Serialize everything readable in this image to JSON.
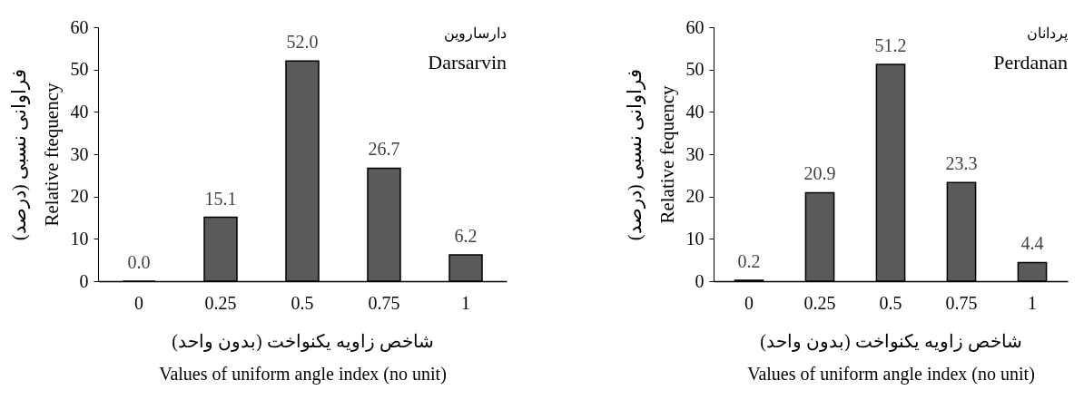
{
  "chart_data": [
    {
      "type": "bar",
      "title": "دارساروین",
      "subtitle": "Darsarvin",
      "xlabel": "شاخص زاویه یکنواخت (بدون واحد)\nValues of uniform angle index (no unit)",
      "ylabel": "فراوانی نسبی (درصد)\nRelative ftequency",
      "categories": [
        "0",
        "0.25",
        "0.5",
        "0.75",
        "1"
      ],
      "values": [
        0.0,
        15.1,
        52.0,
        26.7,
        6.2
      ],
      "value_labels": [
        "0.0",
        "15.1",
        "52.0",
        "26.7",
        "6.2"
      ],
      "color": "#5a5a5a",
      "ylim": [
        0,
        60
      ],
      "yticks": [
        0,
        10,
        20,
        30,
        40,
        50,
        60
      ],
      "grid": false
    },
    {
      "type": "bar",
      "title": "پردانان",
      "subtitle": "Perdanan",
      "xlabel": "شاخص زاویه یکنواخت (بدون واحد)\nValues of uniform angle index (no unit)",
      "ylabel": "فراوانی نسبی (درصد)\nRelative fequency",
      "categories": [
        "0",
        "0.25",
        "0.5",
        "0.75",
        "1"
      ],
      "values": [
        0.2,
        20.9,
        51.2,
        23.3,
        4.4
      ],
      "value_labels": [
        "0.2",
        "20.9",
        "51.2",
        "23.3",
        "4.4"
      ],
      "color": "#5a5a5a",
      "ylim": [
        0,
        60
      ],
      "yticks": [
        0,
        10,
        20,
        30,
        40,
        50,
        60
      ],
      "grid": false
    }
  ]
}
